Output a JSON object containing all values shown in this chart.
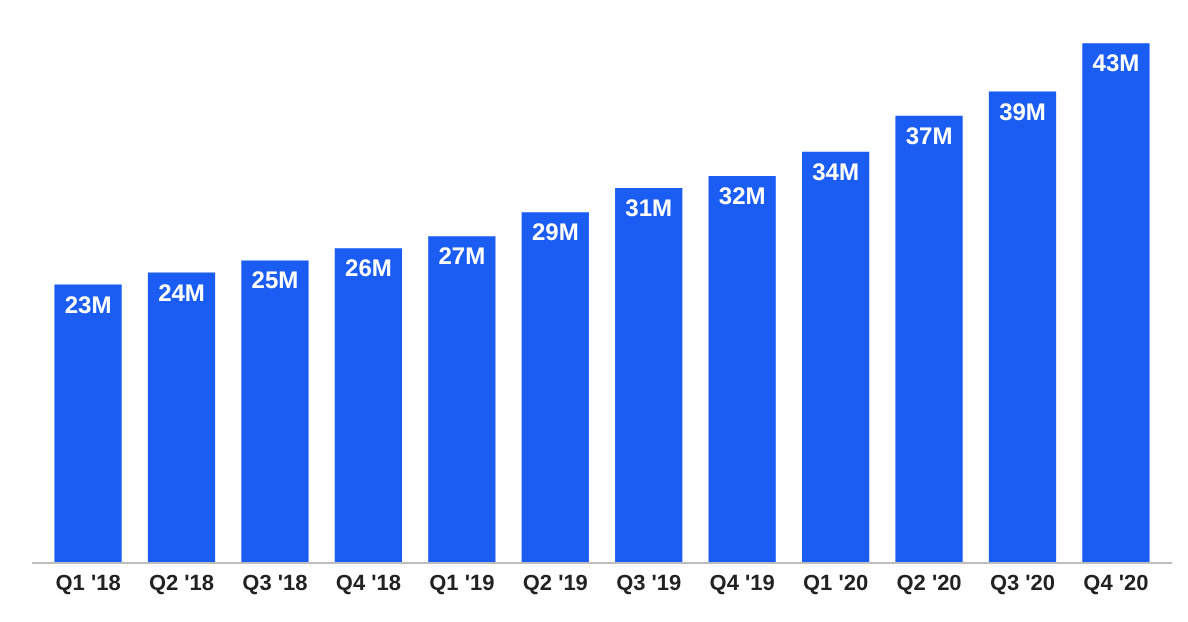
{
  "chart_data": {
    "type": "bar",
    "categories": [
      "Q1 '18",
      "Q2 '18",
      "Q3 '18",
      "Q4 '18",
      "Q1 '19",
      "Q2 '19",
      "Q3 '19",
      "Q4 '19",
      "Q1 '20",
      "Q2 '20",
      "Q3 '20",
      "Q4 '20"
    ],
    "values": [
      23,
      24,
      25,
      26,
      27,
      29,
      31,
      32,
      34,
      37,
      39,
      43
    ],
    "value_labels": [
      "23M",
      "24M",
      "25M",
      "26M",
      "27M",
      "29M",
      "31M",
      "32M",
      "34M",
      "37M",
      "39M",
      "43M"
    ],
    "color": "#1b5cf2",
    "tick_labels": "x"
  }
}
